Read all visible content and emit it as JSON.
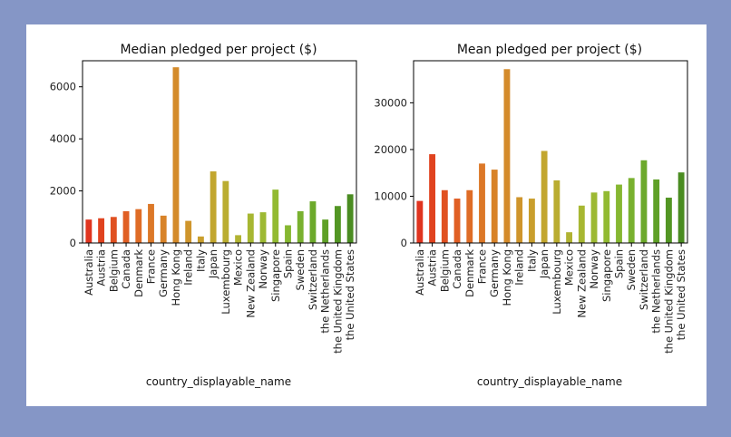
{
  "page": {
    "background": "#8596c6",
    "figure_background": "#ffffff"
  },
  "chart_data": [
    {
      "type": "bar",
      "title": "Median pledged per project ($)",
      "xlabel": "country_displayable_name",
      "ylabel": "",
      "ylim": [
        0,
        7000
      ],
      "yticks": [
        0,
        2000,
        4000,
        6000
      ],
      "grid": false,
      "categories": [
        "Australia",
        "Austria",
        "Belgium",
        "Canada",
        "Denmark",
        "France",
        "Germany",
        "Hong Kong",
        "Ireland",
        "Italy",
        "Japan",
        "Luxembourg",
        "Mexico",
        "New Zealand",
        "Norway",
        "Singapore",
        "Spain",
        "Sweden",
        "Switzerland",
        "the Netherlands",
        "the United Kingdom",
        "the United States"
      ],
      "values": [
        900,
        950,
        1000,
        1220,
        1300,
        1500,
        1050,
        6750,
        850,
        250,
        2750,
        2380,
        300,
        1130,
        1180,
        2050,
        680,
        1220,
        1600,
        900,
        1420,
        1870
      ],
      "colors": [
        "#e0341f",
        "#e0431f",
        "#e05121",
        "#e05f24",
        "#df6c26",
        "#dc7828",
        "#d88329",
        "#d48b2b",
        "#cf952c",
        "#c99e2d",
        "#c2a62e",
        "#baad30",
        "#b1b332",
        "#a7b732",
        "#9db933",
        "#92ba32",
        "#86b731",
        "#79b12f",
        "#6ca92b",
        "#5fa027",
        "#539624",
        "#4a8c21"
      ]
    },
    {
      "type": "bar",
      "title": "Mean pledged per project ($)",
      "xlabel": "country_displayable_name",
      "ylabel": "",
      "ylim": [
        0,
        39000
      ],
      "yticks": [
        0,
        10000,
        20000,
        30000
      ],
      "grid": false,
      "categories": [
        "Australia",
        "Austria",
        "Belgium",
        "Canada",
        "Denmark",
        "France",
        "Germany",
        "Hong Kong",
        "Ireland",
        "Italy",
        "Japan",
        "Luxembourg",
        "Mexico",
        "New Zealand",
        "Norway",
        "Singapore",
        "Spain",
        "Sweden",
        "Switzerland",
        "the Netherlands",
        "the United Kingdom",
        "the United States"
      ],
      "values": [
        9000,
        19000,
        11300,
        9500,
        11300,
        17000,
        15700,
        37200,
        9800,
        9500,
        19700,
        13400,
        2300,
        8000,
        10800,
        11100,
        12500,
        13900,
        17700,
        13600,
        9700,
        15100
      ],
      "colors": [
        "#e0341f",
        "#e0431f",
        "#e05121",
        "#e05f24",
        "#df6c26",
        "#dc7828",
        "#d88329",
        "#d48b2b",
        "#cf952c",
        "#c99e2d",
        "#c2a62e",
        "#baad30",
        "#b1b332",
        "#a7b732",
        "#9db933",
        "#92ba32",
        "#86b731",
        "#79b12f",
        "#6ca92b",
        "#5fa027",
        "#539624",
        "#4a8c21"
      ]
    }
  ]
}
